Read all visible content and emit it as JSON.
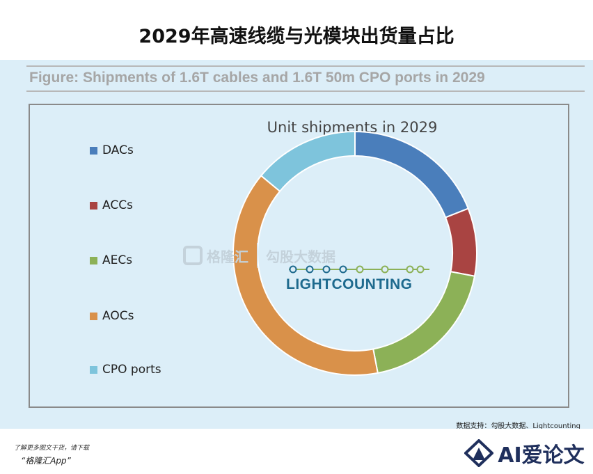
{
  "page_title": "2029年高速线缆与光模块出货量占比",
  "figure_caption": "Figure: Shipments of 1.6T cables and 1.6T 50m CPO ports in 2029",
  "watermark": {
    "left": "格隆汇",
    "right": "勾股大数据"
  },
  "source_logo": "LIGHTCOUNTING",
  "source_note": "数据支持：勾股大数据、Lightcounting",
  "footer": {
    "line1": "了解更多图文干货，请下载",
    "line2": "“格隆汇App”",
    "brand": "AI爱论文"
  },
  "chart_data": {
    "type": "pie",
    "subtype": "donut",
    "title": "Unit shipments in 2029",
    "legend_position": "left",
    "categories": [
      "DACs",
      "ACCs",
      "AECs",
      "AOCs",
      "CPO ports"
    ],
    "values": [
      19,
      9,
      19,
      39,
      14
    ],
    "colors": [
      "#4a7ebb",
      "#a94442",
      "#8cb157",
      "#d9914a",
      "#7ec4dc"
    ]
  }
}
